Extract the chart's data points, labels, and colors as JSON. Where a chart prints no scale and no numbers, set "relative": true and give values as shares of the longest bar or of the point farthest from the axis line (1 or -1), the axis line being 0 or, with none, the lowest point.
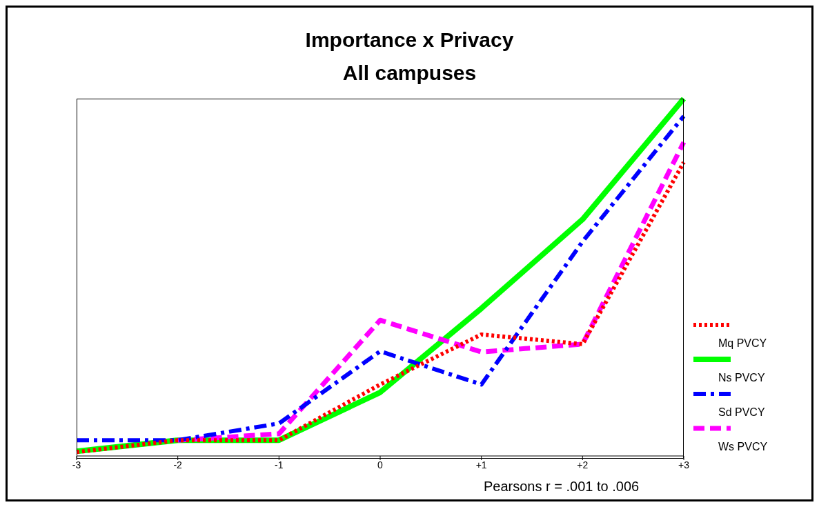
{
  "chart_data": {
    "type": "line",
    "title": "Importance x Privacy",
    "subtitle": "All campuses",
    "categories": [
      "-3",
      "-2",
      "-1",
      "0",
      "+1",
      "+2",
      "+3"
    ],
    "relative": true,
    "legend": "right",
    "grid": false,
    "marker": "none",
    "series": [
      {
        "name": "Mq PVCY",
        "color": "#ff0000",
        "line_style": "dotted",
        "values": [
          0.011,
          0.044,
          0.044,
          0.2,
          0.34,
          0.313,
          0.822
        ]
      },
      {
        "name": "Ns PVCY",
        "color": "#00ff00",
        "line_style": "solid",
        "values": [
          0.013,
          0.044,
          0.044,
          0.178,
          0.413,
          0.662,
          1
        ]
      },
      {
        "name": "Sd PVCY",
        "color": "#0000ff",
        "line_style": "dashdot",
        "values": [
          0.044,
          0.044,
          0.091,
          0.293,
          0.2,
          0.6,
          0.951
        ]
      },
      {
        "name": "Ws PVCY",
        "color": "#ff00ff",
        "line_style": "dashed",
        "values": [
          null,
          0.044,
          0.062,
          0.38,
          0.291,
          0.313,
          0.878
        ]
      }
    ],
    "annotations": [
      "Pearsons r = .001 to .006"
    ]
  }
}
